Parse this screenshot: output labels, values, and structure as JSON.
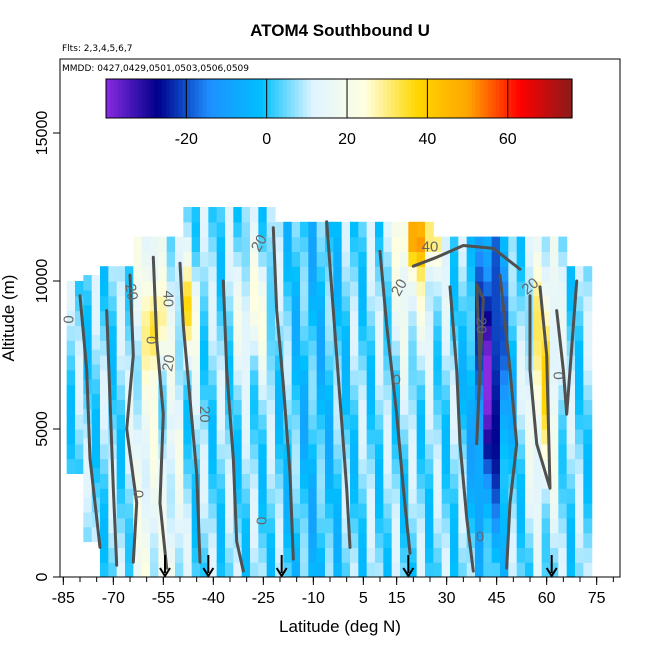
{
  "chart_data": {
    "type": "heatmap",
    "title": "ATOM4 Southbound U",
    "annotations": [
      "Flts: 2,3,4,5,6,7",
      "MMDD: 0427,0429,0501,0503,0506,0509"
    ],
    "xlabel": "Latitude (deg N)",
    "ylabel": "Altitude (m)",
    "xlim": [
      -86,
      82
    ],
    "ylim": [
      0,
      17500
    ],
    "x_ticks": [
      -85,
      -70,
      -55,
      -40,
      -25,
      -10,
      5,
      15,
      30,
      45,
      60,
      75
    ],
    "y_ticks": [
      0,
      5000,
      10000,
      15000
    ],
    "colorbar": {
      "range": [
        -40,
        76
      ],
      "ticks": [
        -20,
        0,
        20,
        40,
        60
      ],
      "colors": [
        "#8a2be2",
        "#00008b",
        "#1e90ff",
        "#00bfff",
        "#e0f4ff",
        "#ffffe0",
        "#ffd700",
        "#ffa500",
        "#ff0000",
        "#8b1a1a"
      ]
    },
    "profile_markers": [
      -54.5,
      -41.5,
      -19.5,
      18.5,
      61.5
    ],
    "contour_label_values": [
      0,
      20,
      40
    ]
  }
}
